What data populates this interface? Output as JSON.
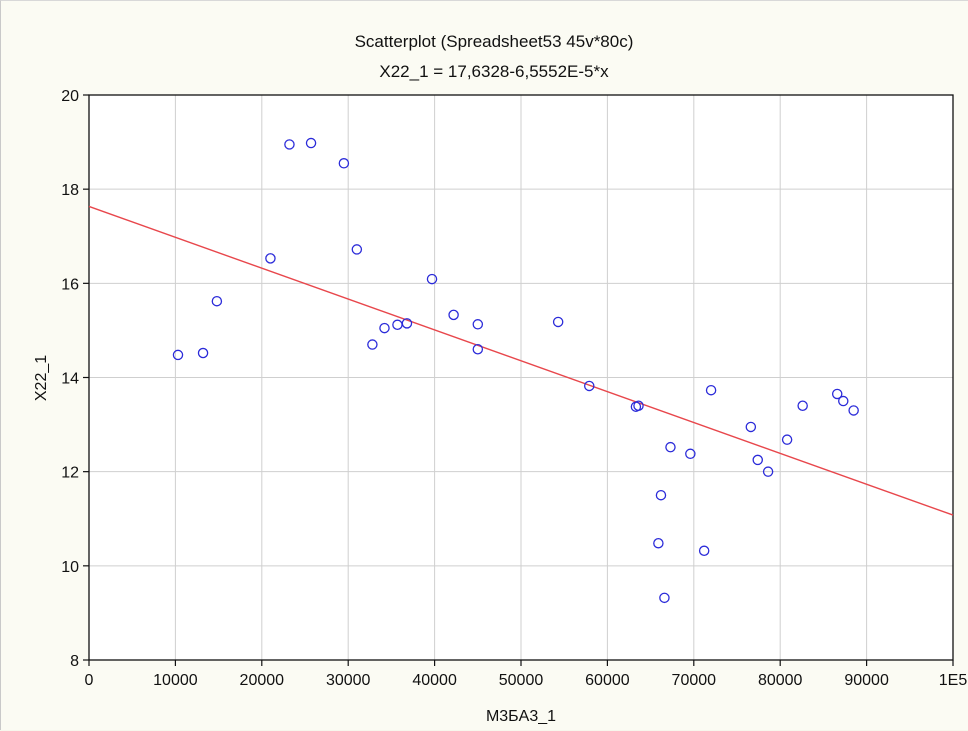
{
  "chart_data": {
    "type": "scatter",
    "title": "Scatterplot (Spreadsheet53 45v*80c)",
    "subtitle": "X22_1 = 17,6328-6,5552E-5*x",
    "xlabel": "M3БA3_1",
    "ylabel": "X22_1",
    "xlim": [
      0,
      100000
    ],
    "ylim": [
      8,
      20
    ],
    "x_ticks": [
      0,
      10000,
      20000,
      30000,
      40000,
      50000,
      60000,
      70000,
      80000,
      90000,
      100000
    ],
    "x_tick_labels": [
      "0",
      "10000",
      "20000",
      "30000",
      "40000",
      "50000",
      "60000",
      "70000",
      "80000",
      "90000",
      "1E5"
    ],
    "y_ticks": [
      8,
      10,
      12,
      14,
      16,
      18,
      20
    ],
    "y_tick_labels": [
      "8",
      "10",
      "12",
      "14",
      "16",
      "18",
      "20"
    ],
    "grid": true,
    "point_color": "#2b2bd9",
    "fit_color": "#e8474c",
    "fit": {
      "intercept": 17.6328,
      "slope": -6.5552e-05
    },
    "points": [
      {
        "x": 10300,
        "y": 14.48
      },
      {
        "x": 13200,
        "y": 14.52
      },
      {
        "x": 14800,
        "y": 15.62
      },
      {
        "x": 21000,
        "y": 16.53
      },
      {
        "x": 23200,
        "y": 18.95
      },
      {
        "x": 25700,
        "y": 18.98
      },
      {
        "x": 29500,
        "y": 18.55
      },
      {
        "x": 31000,
        "y": 16.72
      },
      {
        "x": 32800,
        "y": 14.7
      },
      {
        "x": 34200,
        "y": 15.05
      },
      {
        "x": 35700,
        "y": 15.12
      },
      {
        "x": 36800,
        "y": 15.15
      },
      {
        "x": 39700,
        "y": 16.09
      },
      {
        "x": 42200,
        "y": 15.33
      },
      {
        "x": 45000,
        "y": 15.13
      },
      {
        "x": 45000,
        "y": 14.6
      },
      {
        "x": 54300,
        "y": 15.18
      },
      {
        "x": 57900,
        "y": 13.82
      },
      {
        "x": 63300,
        "y": 13.38
      },
      {
        "x": 63600,
        "y": 13.4
      },
      {
        "x": 65900,
        "y": 10.48
      },
      {
        "x": 66200,
        "y": 11.5
      },
      {
        "x": 66600,
        "y": 9.32
      },
      {
        "x": 67300,
        "y": 12.52
      },
      {
        "x": 69600,
        "y": 12.38
      },
      {
        "x": 71200,
        "y": 10.32
      },
      {
        "x": 72000,
        "y": 13.73
      },
      {
        "x": 76600,
        "y": 12.95
      },
      {
        "x": 77400,
        "y": 12.25
      },
      {
        "x": 78600,
        "y": 12.0
      },
      {
        "x": 80800,
        "y": 12.68
      },
      {
        "x": 82600,
        "y": 13.4
      },
      {
        "x": 86600,
        "y": 13.65
      },
      {
        "x": 87300,
        "y": 13.5
      },
      {
        "x": 88500,
        "y": 13.3
      }
    ]
  }
}
